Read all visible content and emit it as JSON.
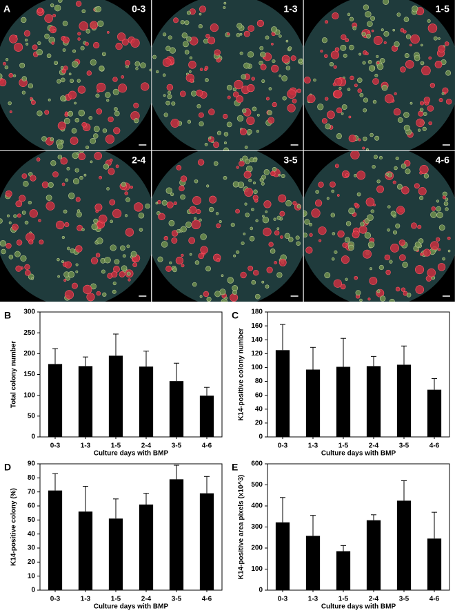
{
  "image_panel": {
    "label": "A",
    "images": [
      {
        "label": "0-3"
      },
      {
        "label": "1-3"
      },
      {
        "label": "1-5"
      },
      {
        "label": "2-4"
      },
      {
        "label": "3-5"
      },
      {
        "label": "4-6"
      }
    ]
  },
  "chart_data": [
    {
      "type": "bar",
      "panel": "B",
      "ylabel": "Total colony number",
      "xlabel": "Culture days with BMP",
      "categories": [
        "0-3",
        "1-3",
        "1-5",
        "2-4",
        "3-5",
        "4-6"
      ],
      "values": [
        175,
        170,
        195,
        169,
        134,
        99
      ],
      "errors": [
        37,
        22,
        52,
        37,
        43,
        20
      ],
      "color": "#000000",
      "ylim": [
        0,
        300
      ],
      "yticks": [
        0,
        50,
        100,
        150,
        200,
        250,
        300
      ]
    },
    {
      "type": "bar",
      "panel": "C",
      "ylabel": "K14-positive colony number",
      "xlabel": "Culture days with BMP",
      "categories": [
        "0-3",
        "1-3",
        "1-5",
        "2-4",
        "3-5",
        "4-6"
      ],
      "values": [
        125,
        97,
        101,
        102,
        104,
        68
      ],
      "errors": [
        37,
        32,
        41,
        14,
        27,
        16
      ],
      "color": "#000000",
      "ylim": [
        0,
        180
      ],
      "yticks": [
        0,
        20,
        40,
        60,
        80,
        100,
        120,
        140,
        160,
        180
      ]
    },
    {
      "type": "bar",
      "panel": "D",
      "ylabel": "K14-positive colony (%)",
      "xlabel": "Culture days with BMP",
      "categories": [
        "0-3",
        "1-3",
        "1-5",
        "2-4",
        "3-5",
        "4-6"
      ],
      "values": [
        71,
        56,
        51,
        61,
        79,
        69
      ],
      "errors": [
        12,
        18,
        14,
        8,
        10,
        12
      ],
      "color": "#000000",
      "ylim": [
        0,
        90
      ],
      "yticks": [
        0,
        10,
        20,
        30,
        40,
        50,
        60,
        70,
        80,
        90
      ]
    },
    {
      "type": "bar",
      "panel": "E",
      "ylabel": "K14-positive area pixels (x10^3)",
      "xlabel": "Culture days with BMP",
      "categories": [
        "0-3",
        "1-3",
        "1-5",
        "2-4",
        "3-5",
        "4-6"
      ],
      "values": [
        322,
        258,
        185,
        332,
        425,
        245
      ],
      "errors": [
        118,
        97,
        27,
        26,
        95,
        125
      ],
      "color": "#000000",
      "ylim": [
        0,
        600
      ],
      "yticks": [
        0,
        100,
        200,
        300,
        400,
        500,
        600
      ]
    }
  ]
}
